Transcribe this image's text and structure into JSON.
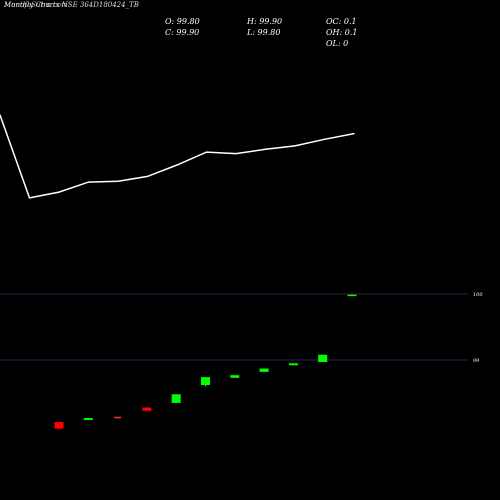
{
  "header": {
    "title_overlap": "MunafaSutra.com",
    "title": "Monthly Charts NSE 364D180424_TB",
    "open": "O: 99.80",
    "high": "H: 99.90",
    "close": "C: 99.90",
    "low": "L: 99.80",
    "oc": "OC: 0.1",
    "oh": "OH: 0.1",
    "ol": "OL: 0"
  },
  "colors": {
    "background": "#000000",
    "up": "#00ff00",
    "down": "#ff0000",
    "line": "#ffffff",
    "gridline": "#1f2a4a",
    "doji": "#ff3030"
  },
  "chart_data": [
    {
      "type": "line",
      "title": "",
      "xlabel": "",
      "ylabel": "",
      "series": [
        {
          "values": [
            100.0,
            71.0,
            73.0,
            76.5,
            76.8,
            78.5,
            82.5,
            87.0,
            86.5,
            88.0,
            89.2,
            91.5,
            93.5
          ]
        }
      ],
      "ylim": [
        65.0,
        100.0
      ],
      "grid": false
    },
    {
      "type": "candlestick",
      "title": "",
      "xlabel": "",
      "ylabel": "",
      "y_tick_labels": [
        "99",
        "100"
      ],
      "ylim": [
        97.9,
        100.05
      ],
      "candles": [
        {
          "open": 98.06,
          "high": 98.06,
          "close": 97.96,
          "low": 97.95
        },
        {
          "open": 98.09,
          "high": 98.12,
          "close": 98.12,
          "low": 98.09
        },
        {
          "open": 98.14,
          "high": 98.14,
          "close": 98.14,
          "low": 98.14
        },
        {
          "open": 98.28,
          "high": 98.29,
          "close": 98.23,
          "low": 98.23
        },
        {
          "open": 98.35,
          "high": 98.48,
          "close": 98.48,
          "low": 98.35
        },
        {
          "open": 98.62,
          "high": 98.74,
          "close": 98.74,
          "low": 98.6
        },
        {
          "open": 98.73,
          "high": 98.77,
          "close": 98.77,
          "low": 98.73
        },
        {
          "open": 98.82,
          "high": 98.87,
          "close": 98.87,
          "low": 98.82
        },
        {
          "open": 98.92,
          "high": 98.95,
          "close": 98.95,
          "low": 98.92
        },
        {
          "open": 98.97,
          "high": 99.08,
          "close": 99.08,
          "low": 98.97
        },
        {
          "open": 99.97,
          "high": 99.99,
          "close": 99.99,
          "low": 99.97
        }
      ]
    }
  ]
}
